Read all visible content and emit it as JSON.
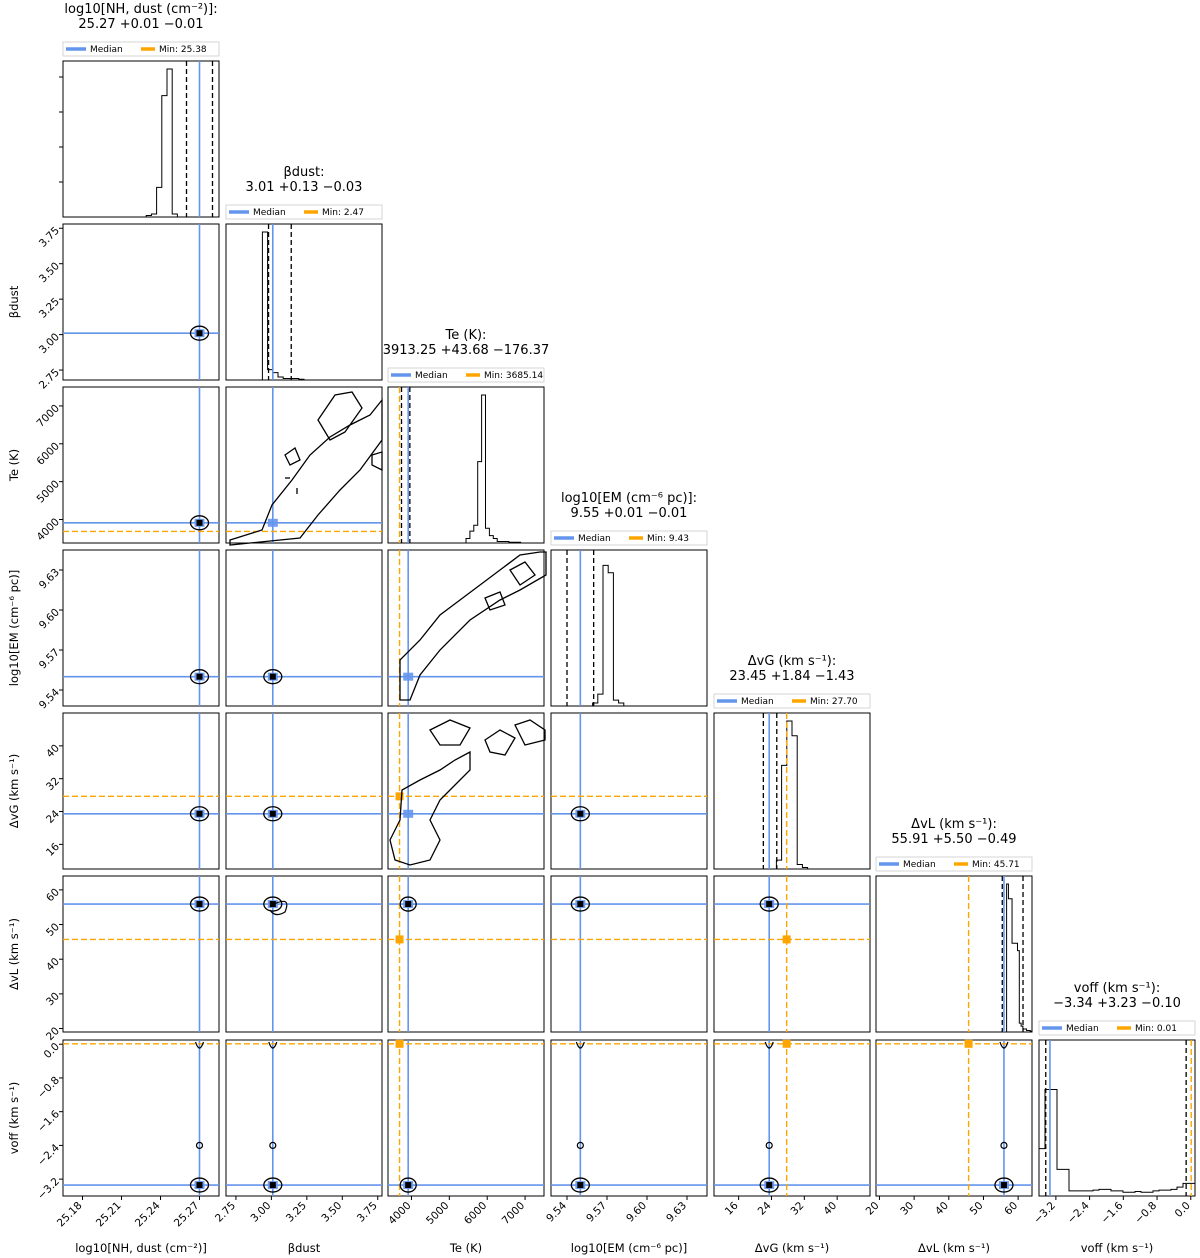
{
  "colors": {
    "median": "#6495ed",
    "min": "#ffa500",
    "line": "#000000"
  },
  "chart_data": {
    "type": "corner",
    "legend": {
      "median_label": "Median",
      "min_prefix": "Min: "
    },
    "params": [
      {
        "key": "nh",
        "title": "log10[NH, dust (cm⁻²)]:",
        "summary": "25.27 +0.01 −0.01",
        "xlabel": "log10[NH, dust (cm⁻²)]",
        "ylabel": "",
        "min_label": "25.38",
        "range": [
          25.165,
          25.285
        ],
        "ticks": [
          25.18,
          25.21,
          25.24,
          25.27
        ],
        "tick_labels": [
          "25.18",
          "25.21",
          "25.24",
          "25.27"
        ],
        "median": 25.27,
        "min": null,
        "q16": 25.26,
        "q84": 25.28,
        "hist": [
          0,
          0,
          0,
          0,
          0,
          0,
          0,
          0,
          0,
          0,
          0,
          0,
          0,
          0,
          0,
          0,
          0.01,
          0.02,
          0.2,
          0.82,
          1,
          0.02,
          0,
          0,
          0,
          0,
          0,
          0,
          0,
          0
        ]
      },
      {
        "key": "beta",
        "title": "βdust:",
        "summary": "3.01 +0.13 −0.03",
        "xlabel": "βdust",
        "ylabel": "βdust",
        "min_label": "2.47",
        "range": [
          2.68,
          3.78
        ],
        "ticks": [
          2.75,
          3.0,
          3.25,
          3.5,
          3.75
        ],
        "tick_labels": [
          "2.75",
          "3.00",
          "3.25",
          "3.50",
          "3.75"
        ],
        "median": 3.01,
        "min": null,
        "q16": 2.98,
        "q84": 3.14,
        "hist": [
          0,
          0,
          0,
          0,
          0,
          0,
          0,
          1,
          0.07,
          0.05,
          0.02,
          0.01,
          0.01,
          0.01,
          0.005,
          0,
          0,
          0,
          0,
          0,
          0,
          0,
          0,
          0,
          0,
          0,
          0,
          0,
          0,
          0
        ]
      },
      {
        "key": "te",
        "title": "Te (K):",
        "summary": "3913.25 +43.68 −176.37",
        "xlabel": "Te (K)",
        "ylabel": "Te (K)",
        "min_label": "3685.14",
        "range": [
          3380,
          7500
        ],
        "ticks": [
          4000,
          5000,
          6000,
          7000
        ],
        "tick_labels": [
          "4000",
          "5000",
          "6000",
          "7000"
        ],
        "median": 3913.25,
        "min": 3685.14,
        "q16": 3736.9,
        "q84": 3956.9,
        "hist": [
          0,
          0,
          0,
          0,
          0,
          0,
          0,
          0,
          0,
          0,
          0,
          0,
          0,
          0,
          0,
          0,
          0,
          0,
          0,
          0,
          0.03,
          0.08,
          0.12,
          0.55,
          1,
          0.1,
          0.05,
          0.03,
          0.01,
          0.01,
          0.01,
          0.005,
          0.005,
          0.005,
          0,
          0,
          0,
          0,
          0,
          0
        ]
      },
      {
        "key": "em",
        "title": "log10[EM (cm⁻⁶ pc)]:",
        "summary": "9.55 +0.01 −0.01",
        "xlabel": "log10[EM (cm⁻⁶ pc)]",
        "ylabel": "log10[EM (cm⁻⁶ pc)]",
        "min_label": "9.43",
        "range": [
          9.528,
          9.645
        ],
        "ticks": [
          9.54,
          9.57,
          9.6,
          9.63
        ],
        "tick_labels": [
          "9.54",
          "9.57",
          "9.60",
          "9.63"
        ],
        "median": 9.55,
        "min": 9.43,
        "q16": 9.54,
        "q84": 9.56,
        "hist": [
          0,
          0,
          0,
          0,
          0,
          0,
          0,
          0,
          0.02,
          0.08,
          0.95,
          0.9,
          0.04,
          0.02,
          0,
          0,
          0,
          0,
          0,
          0,
          0,
          0,
          0,
          0,
          0,
          0,
          0,
          0,
          0,
          0
        ]
      },
      {
        "key": "dvg",
        "title": "ΔvG (km s⁻¹):",
        "summary": "23.45 +1.84 −1.43",
        "xlabel": "ΔvG (km s⁻¹)",
        "ylabel": "ΔvG (km s⁻¹)",
        "min_label": "27.70",
        "range": [
          10,
          48
        ],
        "ticks": [
          16,
          24,
          32,
          40
        ],
        "tick_labels": [
          "16",
          "24",
          "32",
          "40"
        ],
        "median": 23.45,
        "min": 27.7,
        "q16": 22.02,
        "q84": 25.29,
        "hist": [
          0,
          0,
          0,
          0,
          0,
          0,
          0,
          0,
          0,
          0,
          0,
          0,
          0.06,
          0.7,
          1,
          0.9,
          0.03,
          0.01,
          0,
          0,
          0,
          0,
          0,
          0,
          0,
          0,
          0,
          0,
          0,
          0
        ]
      },
      {
        "key": "dvl",
        "title": "ΔvL (km s⁻¹):",
        "summary": "55.91 +5.50 −0.49",
        "xlabel": "ΔvL (km s⁻¹)",
        "ylabel": "ΔvL (km s⁻¹)",
        "min_label": "45.71",
        "range": [
          19,
          64
        ],
        "ticks": [
          20,
          30,
          40,
          50,
          60
        ],
        "tick_labels": [
          "20",
          "30",
          "40",
          "50",
          "60"
        ],
        "median": 55.91,
        "min": 45.71,
        "q16": 55.42,
        "q84": 61.41,
        "hist": [
          0,
          0,
          0,
          0,
          0,
          0,
          0,
          0,
          0,
          0,
          0,
          0,
          0,
          0,
          0,
          0,
          0,
          0,
          0,
          0,
          0,
          0,
          0,
          0,
          0,
          0,
          0,
          0,
          0,
          0,
          0,
          0,
          0,
          0,
          0,
          0,
          0,
          0,
          0,
          0,
          0,
          0,
          0,
          0,
          0,
          0,
          0,
          0,
          0,
          0,
          0,
          0,
          0,
          0,
          0,
          0,
          0,
          0,
          0,
          0,
          0,
          0,
          0,
          0,
          0,
          0,
          0,
          0,
          0,
          0,
          0,
          0,
          1,
          0.9,
          0.9,
          0.6,
          0.6,
          0.6,
          0.55,
          0.06,
          0.04,
          0.02,
          0.02,
          0.01,
          0.01,
          0.005
        ]
      },
      {
        "key": "voff",
        "title": "voff (km s⁻¹):",
        "summary": "−3.34 +3.23 −0.10",
        "xlabel": "voff (km s⁻¹)",
        "ylabel": "voff (km s⁻¹)",
        "min_label": "0.01",
        "range": [
          -3.6,
          0.1
        ],
        "ticks": [
          -3.2,
          -2.4,
          -1.6,
          -0.8,
          0
        ],
        "tick_labels": [
          "−3.2",
          "−2.4",
          "−1.6",
          "−0.8",
          "0.0"
        ],
        "median": -3.34,
        "min": 0.01,
        "q16": -3.44,
        "q84": -0.11,
        "hist": [
          0.32,
          0.72,
          0.72,
          0.18,
          0.18,
          0.035,
          0.035,
          0.035,
          0.035,
          0.04,
          0.045,
          0.045,
          0.035,
          0.035,
          0.025,
          0.025,
          0.03,
          0.025,
          0.025,
          0.035,
          0.04,
          0.04,
          0.045,
          0.06,
          0.085,
          0.085
        ]
      }
    ]
  }
}
